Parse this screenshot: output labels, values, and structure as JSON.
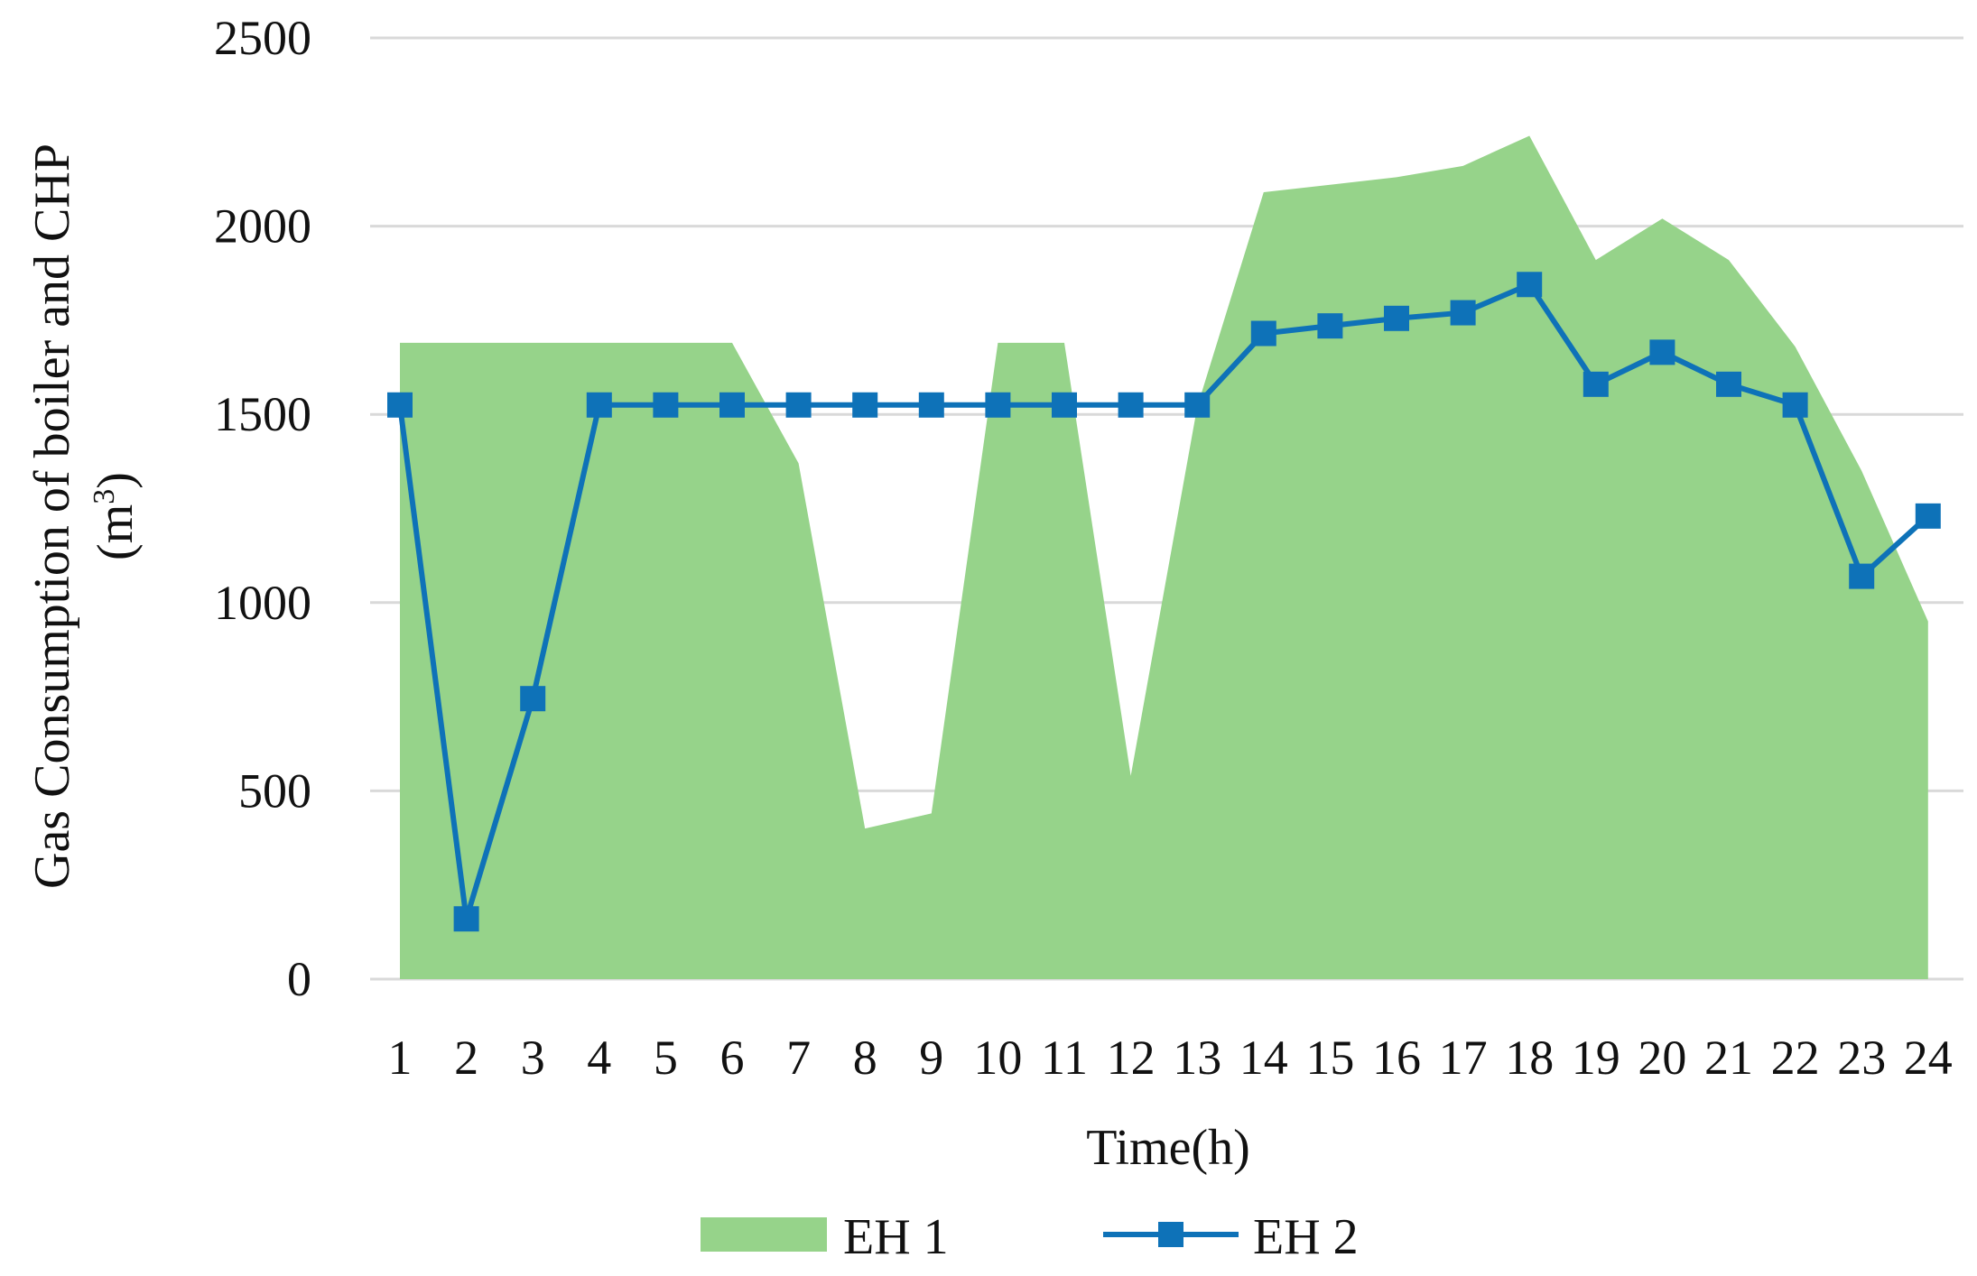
{
  "chart_data": {
    "type": "area",
    "x": [
      1,
      2,
      3,
      4,
      5,
      6,
      7,
      8,
      9,
      10,
      11,
      12,
      13,
      14,
      15,
      16,
      17,
      18,
      19,
      20,
      21,
      22,
      23,
      24
    ],
    "categories": [
      "1",
      "2",
      "3",
      "4",
      "5",
      "6",
      "7",
      "8",
      "9",
      "10",
      "11",
      "12",
      "13",
      "14",
      "15",
      "16",
      "17",
      "18",
      "19",
      "20",
      "21",
      "22",
      "23",
      "24"
    ],
    "series": [
      {
        "name": "EH 1",
        "type": "area",
        "color": "#96d38a",
        "values": [
          1690,
          1690,
          1690,
          1690,
          1690,
          1690,
          1370,
          400,
          440,
          1690,
          1690,
          540,
          1520,
          2090,
          2110,
          2130,
          2160,
          2240,
          1910,
          2020,
          1910,
          1680,
          1350,
          950
        ]
      },
      {
        "name": "EH 2",
        "type": "line",
        "marker": "square",
        "color": "#0e72b8",
        "values": [
          1525,
          160,
          745,
          1525,
          1525,
          1525,
          1525,
          1525,
          1525,
          1525,
          1525,
          1525,
          1525,
          1715,
          1735,
          1755,
          1770,
          1845,
          1580,
          1665,
          1580,
          1525,
          1070,
          1230
        ]
      }
    ],
    "ylim": [
      0,
      2500
    ],
    "yticks": [
      0,
      500,
      1000,
      1500,
      2000,
      2500
    ],
    "ytick_labels": [
      "0",
      "500",
      "1000",
      "1500",
      "2000",
      "2500"
    ],
    "xlabel": "Time(h)",
    "ylabel_line1": "Gas Consumption of  boiler and CHP",
    "ylabel_line2": "(m",
    "ylabel_sup": "3",
    "ylabel_close": ")",
    "grid": "horizontal",
    "legend_position": "bottom",
    "gridline_color": "#d9d9d9"
  }
}
